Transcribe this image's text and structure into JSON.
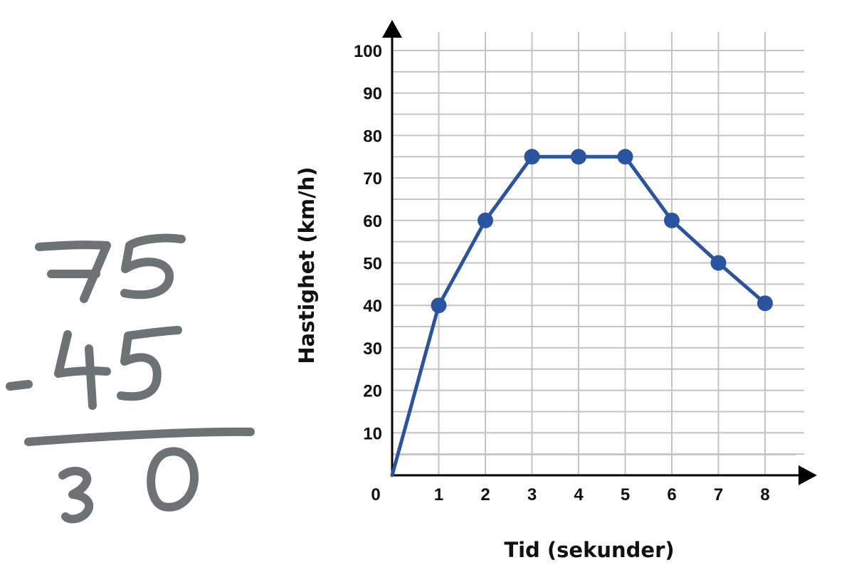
{
  "colors": {
    "series": "#2b54a0",
    "grid": "#c4c4c4",
    "axis": "#000000",
    "handwriting": "#6d7275"
  },
  "handwritten_note": {
    "minuend": "75",
    "subtrahend": "45",
    "operator": "-",
    "result": "30"
  },
  "chart_data": {
    "type": "line",
    "title": "",
    "xlabel": "Tid (sekunder)",
    "ylabel": "Hastighet (km/h)",
    "xlim": [
      0,
      8
    ],
    "ylim": [
      0,
      100
    ],
    "x_ticks": [
      0,
      1,
      2,
      3,
      4,
      5,
      6,
      7,
      8
    ],
    "y_ticks": [
      10,
      20,
      30,
      40,
      50,
      60,
      70,
      80,
      90,
      100
    ],
    "origin_label": "0",
    "grid": true,
    "minor_grid_y": 5,
    "series": [
      {
        "x": [
          0,
          1,
          2,
          3,
          4,
          5,
          6,
          7,
          8
        ],
        "y": [
          0,
          40,
          60,
          75,
          75,
          75,
          60,
          50,
          40.5
        ],
        "markers": [
          false,
          true,
          true,
          true,
          true,
          true,
          true,
          true,
          true
        ]
      }
    ]
  }
}
